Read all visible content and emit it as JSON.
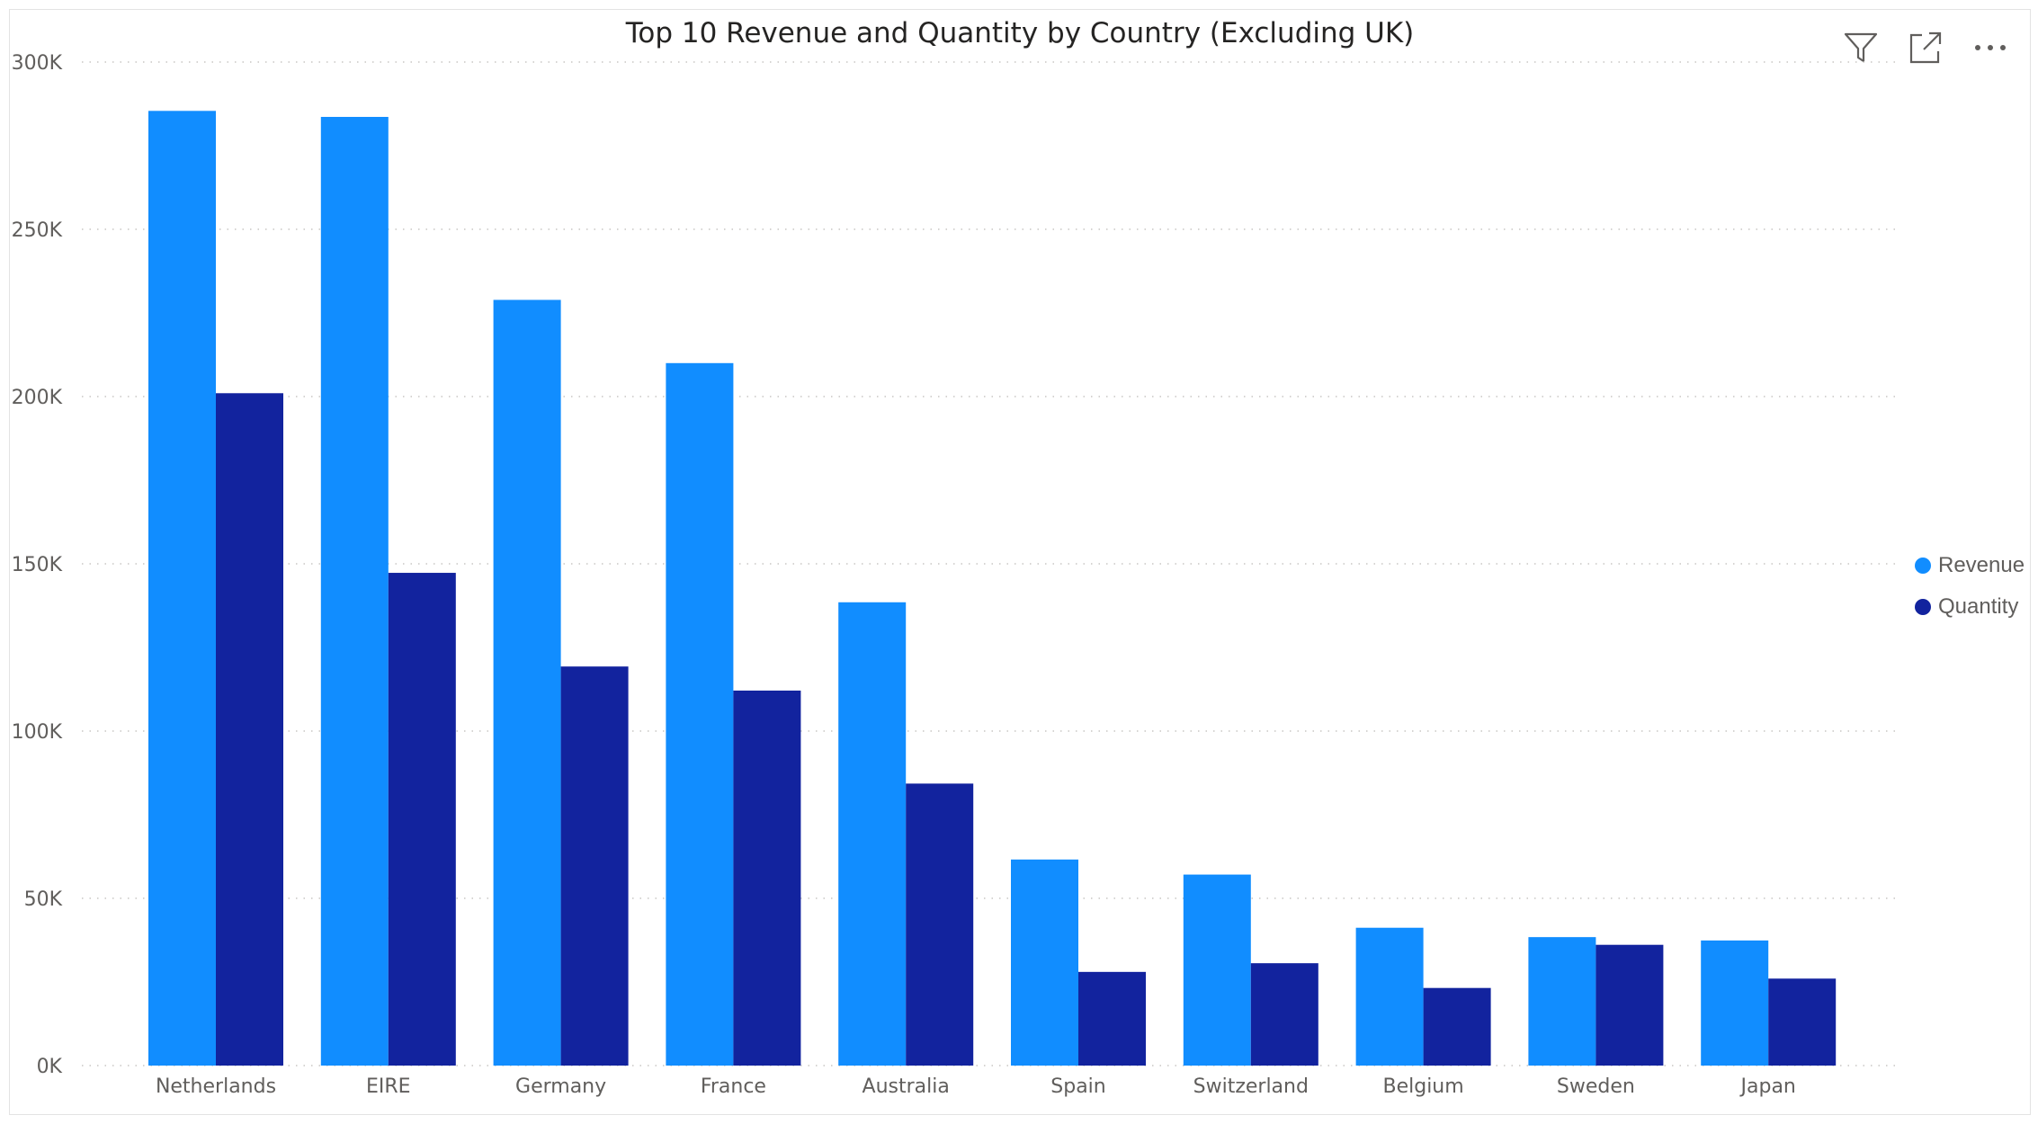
{
  "header": {
    "title": "Top 10 Revenue and Quantity by Country (Excluding UK)",
    "icons": [
      "filter-icon",
      "focus-mode-icon",
      "more-options-icon"
    ]
  },
  "chart_data": {
    "type": "bar",
    "title": "Top 10 Revenue and Quantity by Country (Excluding UK)",
    "categories": [
      "Netherlands",
      "EIRE",
      "Germany",
      "France",
      "Australia",
      "Spain",
      "Switzerland",
      "Belgium",
      "Sweden",
      "Japan"
    ],
    "series": [
      {
        "name": "Revenue",
        "color": "#118DFF",
        "values": [
          285400,
          283600,
          228900,
          210000,
          138500,
          61600,
          57100,
          41200,
          38400,
          37400
        ]
      },
      {
        "name": "Quantity",
        "color": "#12239E",
        "values": [
          201000,
          147300,
          119300,
          112100,
          84300,
          28000,
          30600,
          23200,
          36100,
          26000
        ]
      }
    ],
    "ylim": [
      0,
      300000
    ],
    "yticks": [
      0,
      50000,
      100000,
      150000,
      200000,
      250000,
      300000
    ],
    "ytick_labels": [
      "0K",
      "50K",
      "100K",
      "150K",
      "200K",
      "250K",
      "300K"
    ],
    "xlabel": "",
    "ylabel": "",
    "grid": true,
    "legend_position": "right"
  }
}
